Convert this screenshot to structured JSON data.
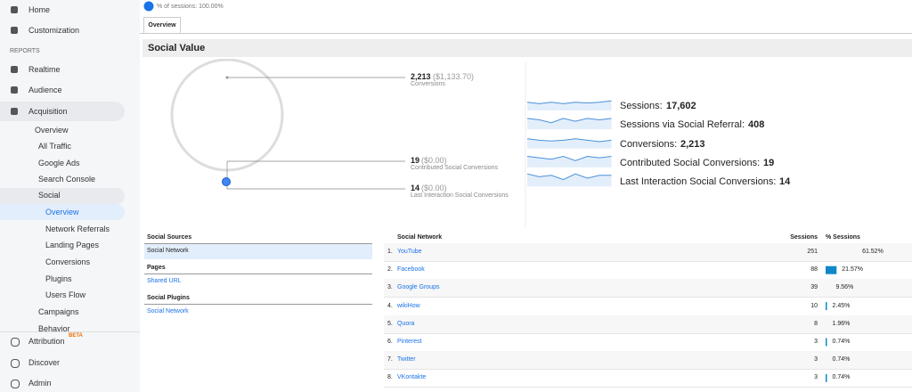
{
  "sidebar": {
    "items": [
      {
        "label": "Home"
      },
      {
        "label": "Customization"
      },
      {
        "label": "REPORTS"
      },
      {
        "label": "Realtime"
      },
      {
        "label": "Audience"
      },
      {
        "label": "Acquisition"
      },
      {
        "label": "Overview"
      },
      {
        "label": "All Traffic"
      },
      {
        "label": "Google Ads"
      },
      {
        "label": "Search Console"
      },
      {
        "label": "Social"
      },
      {
        "label": "Overview"
      },
      {
        "label": "Network Referrals"
      },
      {
        "label": "Landing Pages"
      },
      {
        "label": "Conversions"
      },
      {
        "label": "Plugins"
      },
      {
        "label": "Users Flow"
      },
      {
        "label": "Campaigns"
      },
      {
        "label": "Behavior"
      }
    ],
    "bottom": [
      {
        "label": "Attribution",
        "badge": "BETA"
      },
      {
        "label": "Discover"
      },
      {
        "label": "Admin"
      }
    ]
  },
  "header": {
    "segment": "% of sessions: 100.00%",
    "tab": "Overview",
    "title": "Social Value"
  },
  "diagram": [
    {
      "value": "2,213",
      "money": "($1,133.70)",
      "label": "Conversions"
    },
    {
      "value": "19",
      "money": "($0.00)",
      "label": "Contributed Social Conversions"
    },
    {
      "value": "14",
      "money": "($0.00)",
      "label": "Last Interaction Social Conversions"
    }
  ],
  "metrics": [
    {
      "label": "Sessions:",
      "value": "17,602"
    },
    {
      "label": "Sessions via Social Referral:",
      "value": "408"
    },
    {
      "label": "Conversions:",
      "value": "2,213"
    },
    {
      "label": "Contributed Social Conversions:",
      "value": "19"
    },
    {
      "label": "Last Interaction Social Conversions:",
      "value": "14"
    }
  ],
  "left_panel": [
    {
      "heading": "Social Sources",
      "items": [
        "Social Network"
      ]
    },
    {
      "heading": "Pages",
      "items": [
        "Shared URL"
      ]
    },
    {
      "heading": "Social Plugins",
      "items": [
        "Social Network"
      ]
    }
  ],
  "table": {
    "headers": [
      "Social Network",
      "Sessions",
      "% Sessions"
    ],
    "rows": [
      {
        "rank": "1.",
        "name": "YouTube",
        "sessions": 251,
        "percent": {
          "value": 61.52,
          "label": "61.52%"
        }
      },
      {
        "rank": "2.",
        "name": "Facebook",
        "sessions": 88,
        "percent": {
          "value": 21.57,
          "label": "21.57%"
        }
      },
      {
        "rank": "3.",
        "name": "Google Groups",
        "sessions": 39,
        "percent": {
          "value": 9.56,
          "label": "9.56%"
        }
      },
      {
        "rank": "4.",
        "name": "wikiHow",
        "sessions": 10,
        "percent": {
          "value": 2.45,
          "label": "2.45%"
        }
      },
      {
        "rank": "5.",
        "name": "Quora",
        "sessions": 8,
        "percent": {
          "value": 1.96,
          "label": "1.96%"
        }
      },
      {
        "rank": "6.",
        "name": "Pinterest",
        "sessions": 3,
        "percent": {
          "value": 0.74,
          "label": "0.74%"
        }
      },
      {
        "rank": "7.",
        "name": "Twitter",
        "sessions": 3,
        "percent": {
          "value": 0.74,
          "label": "0.74%"
        }
      },
      {
        "rank": "8.",
        "name": "VKontakte",
        "sessions": 3,
        "percent": {
          "value": 0.74,
          "label": "0.74%"
        }
      }
    ]
  }
}
